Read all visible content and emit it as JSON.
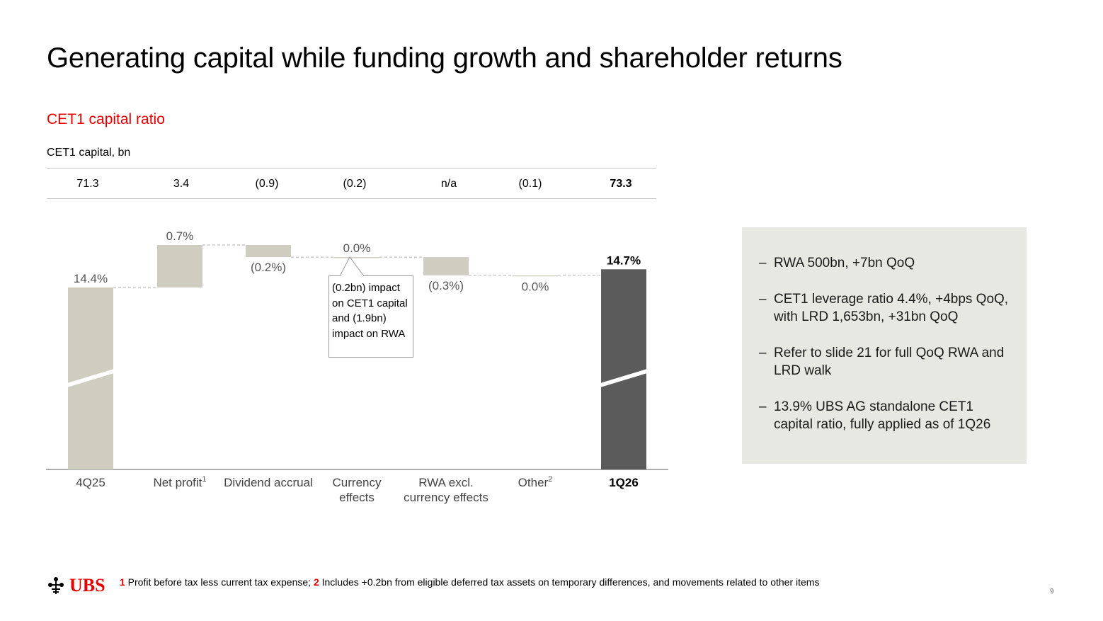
{
  "slide": {
    "title": "Generating capital while funding growth and shareholder returns",
    "subtitle": "CET1 capital ratio",
    "page_number": "9"
  },
  "capital": {
    "label": "CET1 capital, bn",
    "values": [
      "71.3",
      "3.4",
      "(0.9)",
      "(0.2)",
      "n/a",
      "(0.1)",
      "73.3"
    ]
  },
  "callout": {
    "text": "(0.2bn) impact on CET1 capital and (1.9bn) impact on RWA"
  },
  "side_panel": {
    "bullets": [
      "RWA 500bn, +7bn QoQ",
      "CET1 leverage ratio 4.4%, +4bps QoQ, with LRD 1,653bn, +31bn QoQ",
      "Refer to slide 21 for full QoQ RWA and LRD walk",
      "13.9% UBS AG standalone CET1 capital ratio, fully applied as of 1Q26"
    ]
  },
  "footer": {
    "logo_text": "UBS",
    "fn1_num": "1",
    "fn1_text": " Profit before tax less current tax expense; ",
    "fn2_num": "2",
    "fn2_text": " Includes +0.2bn from eligible deferred tax assets on temporary differences, and movements related to other items"
  },
  "colors": {
    "bar_light": "#cfccc0",
    "bar_dark": "#5b5b5b",
    "accent": "#e60000",
    "panel_bg": "#e8e8e2"
  },
  "chart_data": {
    "type": "waterfall",
    "unit": "%",
    "axis_break": true,
    "categories": [
      "4Q25",
      "Net profit",
      "Dividend accrual",
      "Currency effects",
      "RWA excl. currency effects",
      "Other",
      "1Q26"
    ],
    "category_superscripts": [
      "",
      "1",
      "",
      "",
      "",
      "2",
      ""
    ],
    "category_lines": [
      [
        "4Q25"
      ],
      [
        "Net profit"
      ],
      [
        "Dividend accrual"
      ],
      [
        "Currency",
        "effects"
      ],
      [
        "RWA excl.",
        "currency effects"
      ],
      [
        "Other"
      ],
      [
        "1Q26"
      ]
    ],
    "values": [
      14.4,
      0.7,
      -0.2,
      0.0,
      -0.3,
      0.0,
      14.7
    ],
    "kinds": [
      "total",
      "delta",
      "delta",
      "delta",
      "delta",
      "delta",
      "total"
    ],
    "labels": [
      "14.4%",
      "0.7%",
      "(0.2%)",
      "0.0%",
      "(0.3%)",
      "0.0%",
      "14.7%"
    ],
    "label_position": [
      "above",
      "above",
      "below",
      "above",
      "below",
      "below",
      "above"
    ],
    "bold": [
      false,
      false,
      false,
      false,
      false,
      false,
      true
    ]
  }
}
